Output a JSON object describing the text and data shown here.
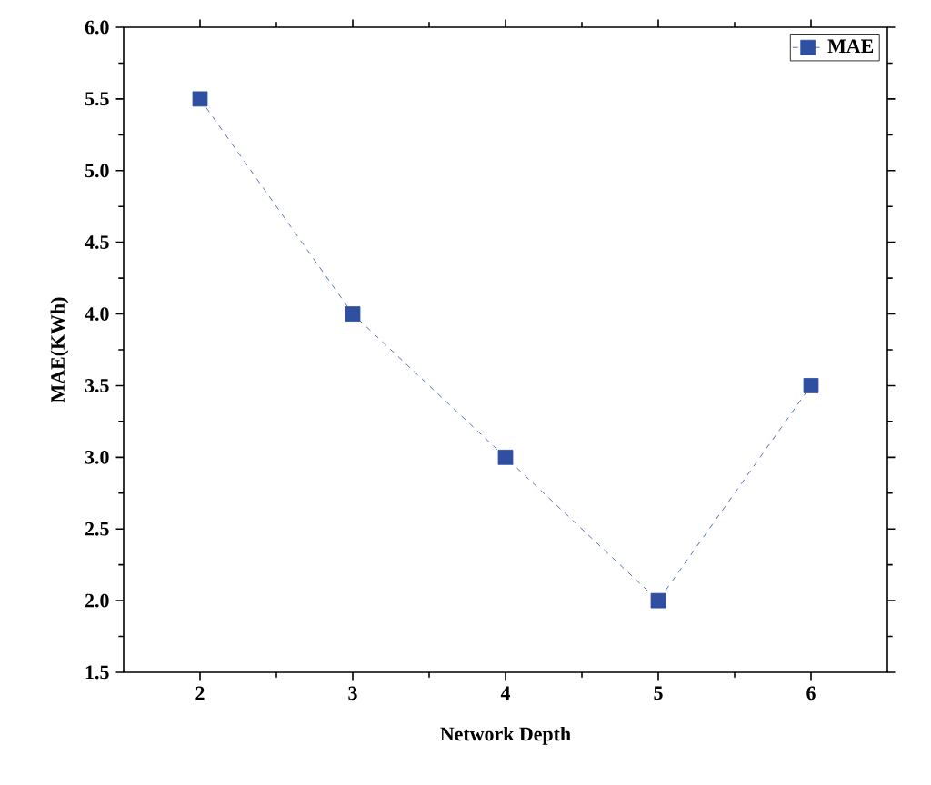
{
  "chart_data": {
    "type": "line",
    "xlabel": "Network Depth",
    "ylabel": "MAE(KWh)",
    "x": [
      2,
      3,
      4,
      5,
      6
    ],
    "series": [
      {
        "name": "MAE",
        "color": "#2f4fa0",
        "values": [
          5.5,
          4.0,
          3.0,
          2.0,
          3.5
        ]
      }
    ],
    "xlim": [
      1.5,
      6.5
    ],
    "ylim": [
      1.5,
      6.0
    ],
    "xticks": [
      2,
      3,
      4,
      5,
      6
    ],
    "yticks": [
      1.5,
      {
        "value": 2,
        "label": "2.0"
      },
      2.5,
      {
        "value": 3,
        "label": "3.0"
      },
      3.5,
      {
        "value": 4,
        "label": "4.0"
      },
      4.5,
      {
        "value": 5,
        "label": "5.0"
      },
      5.5,
      {
        "value": 6,
        "label": "6.0"
      }
    ],
    "marker": "square",
    "line_style": "dashed",
    "legend": "top right",
    "grid": false
  }
}
